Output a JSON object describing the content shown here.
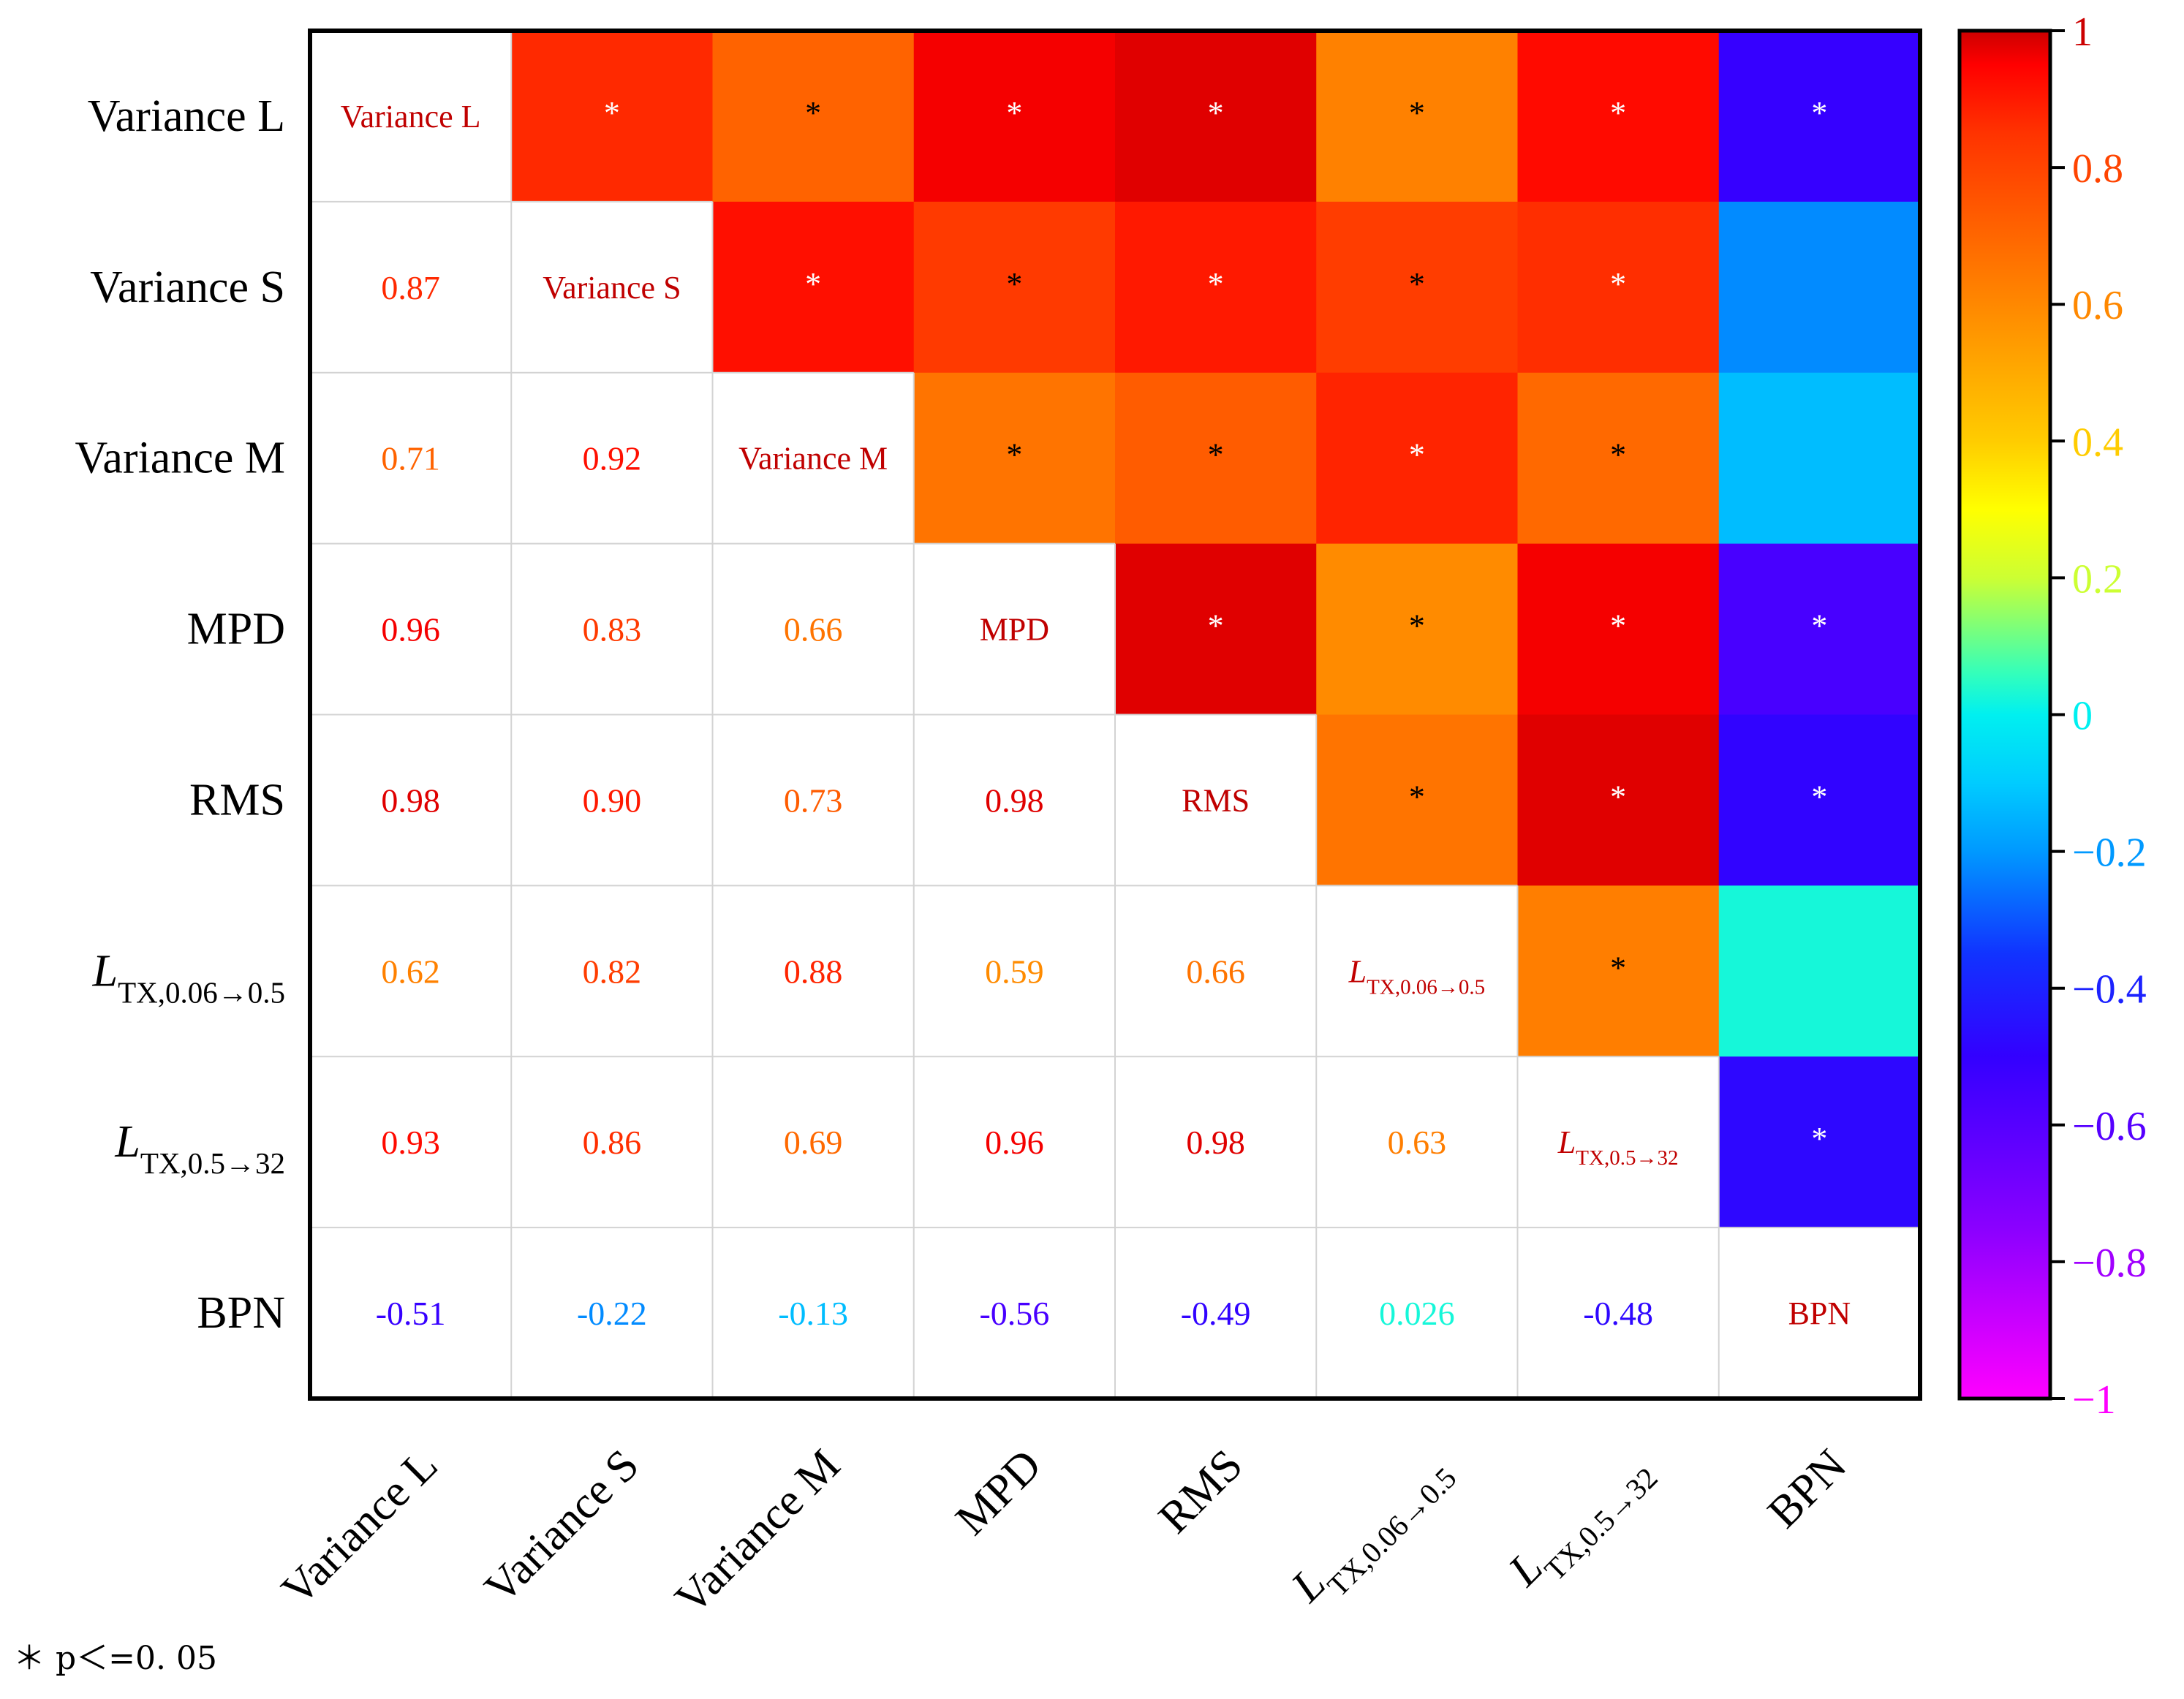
{
  "chart_data": {
    "type": "heatmap",
    "title": "",
    "variables": [
      {
        "italic": "",
        "main": "Variance L",
        "sub": ""
      },
      {
        "italic": "",
        "main": "Variance S",
        "sub": ""
      },
      {
        "italic": "",
        "main": "Variance M",
        "sub": ""
      },
      {
        "italic": "",
        "main": "MPD",
        "sub": ""
      },
      {
        "italic": "",
        "main": "RMS",
        "sub": ""
      },
      {
        "italic": "L",
        "main": "",
        "sub": "TX,0.06→0.5"
      },
      {
        "italic": "L",
        "main": "",
        "sub": "TX,0.5→32"
      },
      {
        "italic": "",
        "main": "BPN",
        "sub": ""
      }
    ],
    "correlations": [
      [
        null,
        null,
        null,
        null,
        null,
        null,
        null,
        null
      ],
      [
        0.87,
        null,
        null,
        null,
        null,
        null,
        null,
        null
      ],
      [
        0.71,
        0.92,
        null,
        null,
        null,
        null,
        null,
        null
      ],
      [
        0.96,
        0.83,
        0.66,
        null,
        null,
        null,
        null,
        null
      ],
      [
        0.98,
        0.9,
        0.73,
        0.98,
        null,
        null,
        null,
        null
      ],
      [
        0.62,
        0.82,
        0.88,
        0.59,
        0.66,
        null,
        null,
        null
      ],
      [
        0.93,
        0.86,
        0.69,
        0.96,
        0.98,
        0.63,
        null,
        null
      ],
      [
        -0.51,
        -0.22,
        -0.13,
        -0.56,
        -0.49,
        0.026,
        -0.48,
        null
      ]
    ],
    "correlation_labels": [
      [
        null,
        null,
        null,
        null,
        null,
        null,
        null,
        null
      ],
      [
        "0.87",
        null,
        null,
        null,
        null,
        null,
        null,
        null
      ],
      [
        "0.71",
        "0.92",
        null,
        null,
        null,
        null,
        null,
        null
      ],
      [
        "0.96",
        "0.83",
        "0.66",
        null,
        null,
        null,
        null,
        null
      ],
      [
        "0.98",
        "0.90",
        "0.73",
        "0.98",
        null,
        null,
        null,
        null
      ],
      [
        "0.62",
        "0.82",
        "0.88",
        "0.59",
        "0.66",
        null,
        null,
        null
      ],
      [
        "0.93",
        "0.86",
        "0.69",
        "0.96",
        "0.98",
        "0.63",
        null,
        null
      ],
      [
        "-0.51",
        "-0.22",
        "-0.13",
        "-0.56",
        "-0.49",
        "0.026",
        "-0.48",
        null
      ]
    ],
    "significance_marker": "*",
    "significant_upper": [
      [
        false,
        true,
        true,
        true,
        true,
        true,
        true,
        true
      ],
      [
        false,
        false,
        true,
        true,
        true,
        true,
        true,
        false
      ],
      [
        false,
        false,
        false,
        true,
        true,
        true,
        true,
        false
      ],
      [
        false,
        false,
        false,
        false,
        true,
        true,
        true,
        true
      ],
      [
        false,
        false,
        false,
        false,
        false,
        true,
        true,
        true
      ],
      [
        false,
        false,
        false,
        false,
        false,
        false,
        true,
        false
      ],
      [
        false,
        false,
        false,
        false,
        false,
        false,
        false,
        true
      ],
      [
        false,
        false,
        false,
        false,
        false,
        false,
        false,
        false
      ]
    ],
    "colorbar": {
      "range": [
        -1,
        1
      ],
      "ticks": [
        1,
        0.8,
        0.6,
        0.4,
        0.2,
        0,
        -0.2,
        -0.4,
        -0.6,
        -0.8,
        -1
      ],
      "tick_labels": [
        "1",
        "0.8",
        "0.6",
        "0.4",
        "0.2",
        "0",
        "−0.2",
        "−0.4",
        "−0.6",
        "−0.8",
        "−1"
      ],
      "stops": [
        {
          "v": -1.0,
          "color": "#ff00ff"
        },
        {
          "v": -0.75,
          "color": "#8a00ff"
        },
        {
          "v": -0.5,
          "color": "#3300ff"
        },
        {
          "v": -0.35,
          "color": "#1133ff"
        },
        {
          "v": -0.2,
          "color": "#0099ff"
        },
        {
          "v": -0.1,
          "color": "#00ccff"
        },
        {
          "v": 0.0,
          "color": "#00f0f0"
        },
        {
          "v": 0.06,
          "color": "#33ffbb"
        },
        {
          "v": 0.2,
          "color": "#ccff33"
        },
        {
          "v": 0.3,
          "color": "#ffff00"
        },
        {
          "v": 0.4,
          "color": "#ffcc00"
        },
        {
          "v": 0.55,
          "color": "#ff9900"
        },
        {
          "v": 0.7,
          "color": "#ff6600"
        },
        {
          "v": 0.85,
          "color": "#ff3300"
        },
        {
          "v": 0.95,
          "color": "#ff0000"
        },
        {
          "v": 1.0,
          "color": "#cc0000"
        }
      ]
    },
    "diagonal_label_color": "#c00000",
    "significance_note": "＊ p＜=0. 05"
  }
}
